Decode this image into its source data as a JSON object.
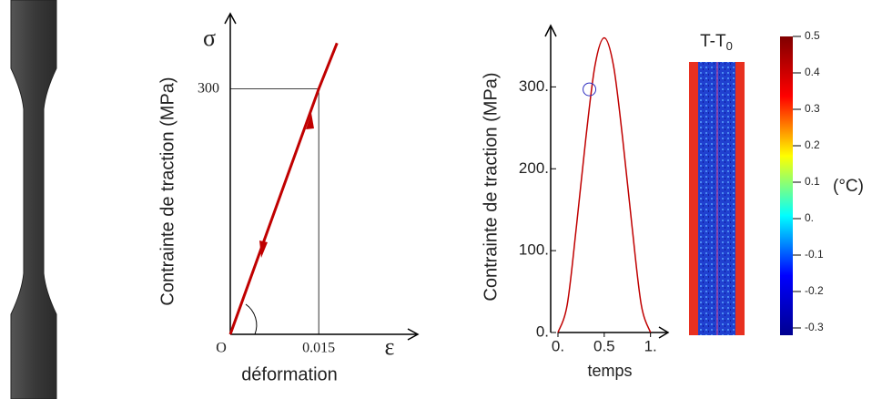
{
  "chart_data": [
    {
      "type": "line",
      "ylabel": "Contrainte de traction (MPa)",
      "xlabel": "déformation",
      "y_symbol": "σ",
      "x_symbol": "ε",
      "x": [
        0,
        0.015,
        0.0181
      ],
      "values": [
        0,
        300,
        356
      ],
      "color": "#c00000",
      "xlim": [
        0,
        0.0318
      ],
      "ylim": [
        0,
        392
      ],
      "xticks": [
        {
          "value": 0,
          "label": "O"
        },
        0.015
      ],
      "yticks": [
        300
      ],
      "guides": true
    },
    {
      "type": "line",
      "ylabel": "Contrainte de traction (MPa)",
      "xlabel": "temps",
      "x": [
        0,
        0.1,
        0.2,
        0.3,
        0.4,
        0.5,
        0.6,
        0.7,
        0.8,
        0.9,
        1
      ],
      "values": [
        0,
        34,
        130,
        236,
        326,
        360,
        326,
        236,
        130,
        34,
        0
      ],
      "color": "#c00000",
      "marker": {
        "x": 0.34,
        "y": 297,
        "color": "#3030c0"
      },
      "xlim": [
        0,
        1.2
      ],
      "ylim": [
        0,
        375
      ],
      "xticks": [
        {
          "value": 0,
          "label": "0."
        },
        0.5,
        {
          "value": 1,
          "label": "1."
        }
      ],
      "yticks": [
        {
          "value": 0,
          "label": "0."
        },
        {
          "value": 100,
          "label": "100."
        },
        {
          "value": 200,
          "label": "200."
        },
        {
          "value": 300,
          "label": "300."
        }
      ]
    },
    {
      "type": "heatmap",
      "title": "T-T",
      "title_subscript": "0",
      "colorbar_label": "(°C)",
      "clim": [
        -0.32,
        0.5
      ],
      "colormap": [
        "#00008f",
        "#0000ff",
        "#00ffff",
        "#ffff00",
        "#ff0000",
        "#800000"
      ],
      "cticks": [
        0.5,
        0.4,
        0.3,
        0.2,
        0.1,
        {
          "value": 0,
          "label": "0."
        },
        -0.1,
        -0.2,
        -0.3
      ]
    }
  ]
}
